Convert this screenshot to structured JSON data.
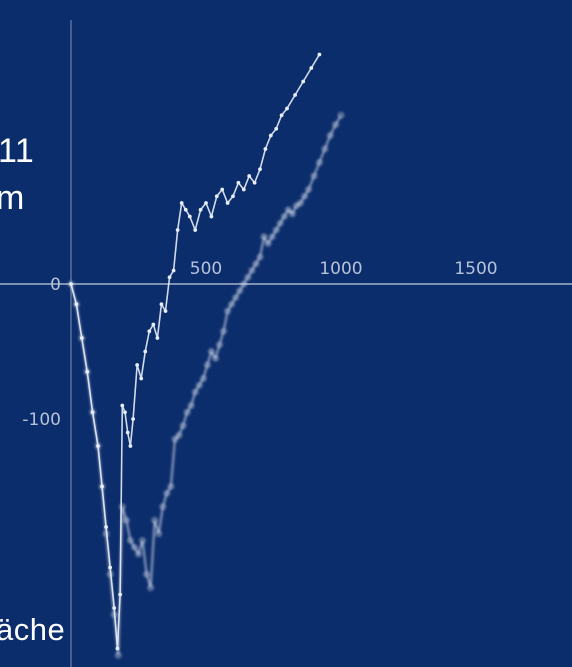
{
  "edge_text": {
    "line1": "11",
    "line2": "m",
    "line3": "äche"
  },
  "colors": {
    "background": "#0c2d6b",
    "axis": "#b6c2d8",
    "series_light": "#e7edf7",
    "series_soft": "#c9d3e6"
  },
  "chart_data": {
    "type": "line",
    "title": "",
    "xlabel": "",
    "ylabel": "",
    "xlim": [
      0,
      1750
    ],
    "ylim": [
      -280,
      150
    ],
    "x_ticks": [
      "500",
      "1000",
      "1500"
    ],
    "x_tick_values": [
      500,
      1000,
      1500
    ],
    "y_ticks": [
      "0",
      "-100"
    ],
    "y_tick_values": [
      0,
      -100
    ],
    "grid": false,
    "series": [
      {
        "style": "small-dots",
        "points": [
          [
            0,
            0
          ],
          [
            20,
            -15
          ],
          [
            40,
            -40
          ],
          [
            60,
            -65
          ],
          [
            80,
            -95
          ],
          [
            100,
            -120
          ],
          [
            115,
            -150
          ],
          [
            130,
            -180
          ],
          [
            145,
            -210
          ],
          [
            160,
            -240
          ],
          [
            172,
            -270
          ],
          [
            182,
            -230
          ],
          [
            190,
            -90
          ],
          [
            200,
            -95
          ],
          [
            210,
            -110
          ],
          [
            220,
            -120
          ],
          [
            230,
            -100
          ],
          [
            245,
            -60
          ],
          [
            260,
            -70
          ],
          [
            275,
            -50
          ],
          [
            290,
            -35
          ],
          [
            305,
            -30
          ],
          [
            320,
            -40
          ],
          [
            335,
            -15
          ],
          [
            350,
            -20
          ],
          [
            365,
            5
          ],
          [
            380,
            10
          ],
          [
            395,
            40
          ],
          [
            410,
            60
          ],
          [
            425,
            55
          ],
          [
            440,
            50
          ],
          [
            460,
            40
          ],
          [
            480,
            55
          ],
          [
            500,
            60
          ],
          [
            520,
            50
          ],
          [
            540,
            65
          ],
          [
            560,
            70
          ],
          [
            580,
            60
          ],
          [
            600,
            65
          ],
          [
            620,
            75
          ],
          [
            640,
            70
          ],
          [
            660,
            80
          ],
          [
            680,
            75
          ],
          [
            700,
            85
          ],
          [
            720,
            100
          ],
          [
            740,
            110
          ],
          [
            760,
            115
          ],
          [
            780,
            125
          ],
          [
            800,
            130
          ],
          [
            830,
            140
          ],
          [
            860,
            150
          ],
          [
            890,
            160
          ],
          [
            920,
            170
          ]
        ]
      },
      {
        "style": "open-circles",
        "points": [
          [
            0,
            0
          ],
          [
            20,
            -15
          ],
          [
            40,
            -40
          ],
          [
            60,
            -65
          ],
          [
            80,
            -95
          ],
          [
            100,
            -120
          ],
          [
            115,
            -150
          ],
          [
            130,
            -185
          ],
          [
            145,
            -215
          ],
          [
            160,
            -245
          ],
          [
            175,
            -275
          ],
          [
            190,
            -165
          ],
          [
            205,
            -175
          ],
          [
            220,
            -190
          ],
          [
            235,
            -195
          ],
          [
            250,
            -200
          ],
          [
            265,
            -190
          ],
          [
            280,
            -215
          ],
          [
            295,
            -225
          ],
          [
            310,
            -175
          ],
          [
            325,
            -185
          ],
          [
            340,
            -165
          ],
          [
            355,
            -155
          ],
          [
            370,
            -150
          ],
          [
            385,
            -115
          ],
          [
            400,
            -112
          ],
          [
            415,
            -105
          ],
          [
            430,
            -95
          ],
          [
            445,
            -90
          ],
          [
            460,
            -80
          ],
          [
            475,
            -75
          ],
          [
            490,
            -70
          ],
          [
            505,
            -60
          ],
          [
            520,
            -50
          ],
          [
            535,
            -55
          ],
          [
            550,
            -45
          ],
          [
            565,
            -35
          ],
          [
            580,
            -20
          ],
          [
            595,
            -15
          ],
          [
            610,
            -10
          ],
          [
            625,
            -5
          ],
          [
            640,
            0
          ],
          [
            655,
            5
          ],
          [
            670,
            10
          ],
          [
            685,
            15
          ],
          [
            700,
            20
          ],
          [
            715,
            35
          ],
          [
            730,
            30
          ],
          [
            745,
            35
          ],
          [
            760,
            40
          ],
          [
            775,
            45
          ],
          [
            790,
            50
          ],
          [
            805,
            55
          ],
          [
            820,
            52
          ],
          [
            835,
            58
          ],
          [
            850,
            60
          ],
          [
            865,
            65
          ],
          [
            880,
            70
          ],
          [
            900,
            80
          ],
          [
            920,
            90
          ],
          [
            940,
            100
          ],
          [
            960,
            110
          ],
          [
            980,
            118
          ],
          [
            1000,
            125
          ]
        ]
      }
    ]
  }
}
